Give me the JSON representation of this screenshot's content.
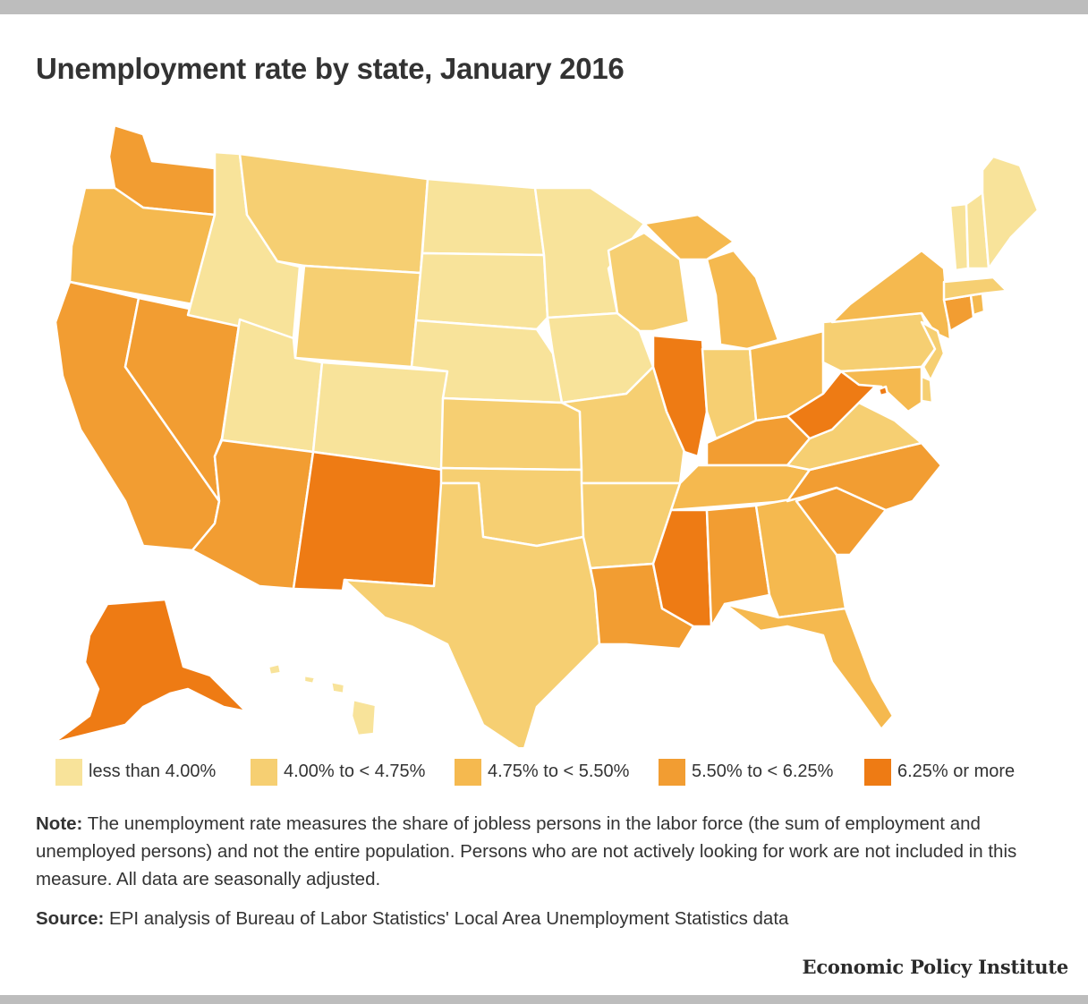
{
  "title": "Unemployment rate by state, January 2016",
  "colors": {
    "bin1": "#f8e39a",
    "bin2": "#f6cf72",
    "bin3": "#f5b94f",
    "bin4": "#f29d32",
    "bin5": "#ee7b14"
  },
  "legend": [
    {
      "label": "less than 4.00%",
      "color": "#f8e39a"
    },
    {
      "label": "4.00% to < 4.75%",
      "color": "#f6cf72"
    },
    {
      "label": "4.75% to < 5.50%",
      "color": "#f5b94f"
    },
    {
      "label": "5.50% to < 6.25%",
      "color": "#f29d32"
    },
    {
      "label": "6.25% or more",
      "color": "#ee7b14"
    }
  ],
  "chart_data": {
    "type": "choropleth",
    "bins": [
      "less than 4.00%",
      "4.00% to < 4.75%",
      "4.75% to < 5.50%",
      "5.50% to < 6.25%",
      "6.25% or more"
    ],
    "states": [
      {
        "state": "WA",
        "bin": 4
      },
      {
        "state": "OR",
        "bin": 3
      },
      {
        "state": "CA",
        "bin": 4
      },
      {
        "state": "NV",
        "bin": 4
      },
      {
        "state": "ID",
        "bin": 1
      },
      {
        "state": "MT",
        "bin": 2
      },
      {
        "state": "WY",
        "bin": 2
      },
      {
        "state": "UT",
        "bin": 1
      },
      {
        "state": "AZ",
        "bin": 4
      },
      {
        "state": "CO",
        "bin": 1
      },
      {
        "state": "NM",
        "bin": 5
      },
      {
        "state": "ND",
        "bin": 1
      },
      {
        "state": "SD",
        "bin": 1
      },
      {
        "state": "NE",
        "bin": 1
      },
      {
        "state": "KS",
        "bin": 2
      },
      {
        "state": "OK",
        "bin": 2
      },
      {
        "state": "TX",
        "bin": 2
      },
      {
        "state": "MN",
        "bin": 1
      },
      {
        "state": "IA",
        "bin": 1
      },
      {
        "state": "MO",
        "bin": 2
      },
      {
        "state": "AR",
        "bin": 2
      },
      {
        "state": "LA",
        "bin": 4
      },
      {
        "state": "WI",
        "bin": 2
      },
      {
        "state": "IL",
        "bin": 5
      },
      {
        "state": "MI",
        "bin": 3
      },
      {
        "state": "IN",
        "bin": 2
      },
      {
        "state": "OH",
        "bin": 3
      },
      {
        "state": "KY",
        "bin": 4
      },
      {
        "state": "TN",
        "bin": 3
      },
      {
        "state": "MS",
        "bin": 5
      },
      {
        "state": "AL",
        "bin": 4
      },
      {
        "state": "GA",
        "bin": 3
      },
      {
        "state": "FL",
        "bin": 3
      },
      {
        "state": "SC",
        "bin": 4
      },
      {
        "state": "NC",
        "bin": 4
      },
      {
        "state": "VA",
        "bin": 2
      },
      {
        "state": "WV",
        "bin": 5
      },
      {
        "state": "PA",
        "bin": 2
      },
      {
        "state": "NY",
        "bin": 3
      },
      {
        "state": "NJ",
        "bin": 2
      },
      {
        "state": "DE",
        "bin": 2
      },
      {
        "state": "MD",
        "bin": 3
      },
      {
        "state": "DC",
        "bin": 5
      },
      {
        "state": "CT",
        "bin": 4
      },
      {
        "state": "RI",
        "bin": 3
      },
      {
        "state": "MA",
        "bin": 2
      },
      {
        "state": "VT",
        "bin": 1
      },
      {
        "state": "NH",
        "bin": 1
      },
      {
        "state": "ME",
        "bin": 1
      },
      {
        "state": "AK",
        "bin": 5
      },
      {
        "state": "HI",
        "bin": 1
      }
    ]
  },
  "note": {
    "label": "Note:",
    "text": "The unemployment rate measures the share of jobless persons in the labor force (the sum of employment and unemployed persons) and not the entire population.  Persons who are not actively looking for work are not included in this measure.  All data are seasonally adjusted."
  },
  "source": {
    "label": "Source:",
    "text": "EPI analysis of Bureau of Labor Statistics' Local Area Unemployment Statistics data"
  },
  "credit": "Economic Policy Institute"
}
